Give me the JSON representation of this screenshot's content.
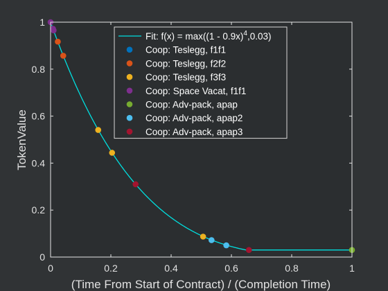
{
  "chart_data": {
    "type": "scatter",
    "xlabel": "(Time From Start of Contract) / (Completion Time)",
    "ylabel": "TokenValue",
    "xlim": [
      0,
      1
    ],
    "ylim": [
      0,
      1
    ],
    "xticks": [
      "0",
      "0.2",
      "0.4",
      "0.6",
      "0.8",
      "1"
    ],
    "yticks": [
      "0",
      "0.2",
      "0.4",
      "0.6",
      "0.8",
      "1"
    ],
    "grid": false,
    "legend_position": "top-center",
    "fit": {
      "name": "Fit: f(x) = max((1 - 0.9x)",
      "exponent": "4",
      "name_tail": ",0.03)",
      "a": 0.9,
      "power": 4,
      "floor": 0.03,
      "color": "#00e0e0"
    },
    "series": [
      {
        "name": "Coop: Teslegg, f1f1",
        "color": "#0072bd",
        "points": []
      },
      {
        "name": "Coop: Teslegg, f2f2",
        "color": "#d95319",
        "points": [
          [
            0.024,
            0.917
          ],
          [
            0.042,
            0.857
          ]
        ]
      },
      {
        "name": "Coop: Teslegg, f3f3",
        "color": "#edb120",
        "points": [
          [
            0.158,
            0.541
          ],
          [
            0.204,
            0.444
          ],
          [
            0.506,
            0.087
          ]
        ]
      },
      {
        "name": "Coop: Space Vacat, f1f1",
        "color": "#7e2f8e",
        "points": [
          [
            0.0,
            1.0
          ],
          [
            0.008,
            0.972
          ],
          [
            0.01,
            0.965
          ]
        ]
      },
      {
        "name": "Coop: Adv-pack, apap",
        "color": "#77ac30",
        "points": [
          [
            1.0,
            0.03
          ]
        ]
      },
      {
        "name": "Coop: Adv-pack, apap2",
        "color": "#4dbeee",
        "points": [
          [
            0.534,
            0.072
          ],
          [
            0.583,
            0.05
          ]
        ]
      },
      {
        "name": "Coop: Adv-pack, apap3",
        "color": "#a2142f",
        "points": [
          [
            0.282,
            0.31
          ],
          [
            0.658,
            0.03
          ]
        ]
      }
    ]
  }
}
